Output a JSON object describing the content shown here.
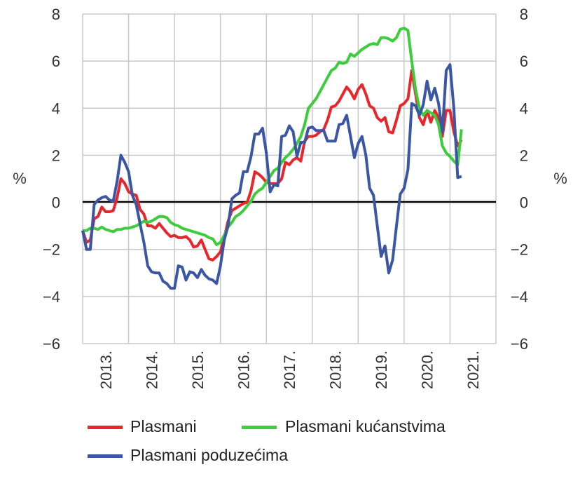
{
  "chart_data": {
    "type": "line",
    "title": "",
    "xlabel": "",
    "ylabel_left": "%",
    "ylabel_right": "%",
    "ylim": [
      -6,
      8
    ],
    "yticks": [
      "8",
      "6",
      "4",
      "2",
      "0",
      "−2",
      "−4",
      "−6"
    ],
    "yticks_values": [
      8,
      6,
      4,
      2,
      0,
      -2,
      -4,
      -6
    ],
    "xtick_labels": [
      "2013.",
      "2014.",
      "2015.",
      "2016.",
      "2017.",
      "2018.",
      "2019.",
      "2020.",
      "2021."
    ],
    "x_start": "2013-01",
    "x_frequency": "monthly",
    "grid": true,
    "legend_position": "bottom",
    "series": [
      {
        "name": "Plasmani",
        "color": "#e8262b",
        "values": [
          -1.2,
          -1.7,
          -1.6,
          -0.7,
          -0.6,
          -0.2,
          -0.4,
          -0.4,
          -0.35,
          0.2,
          1.0,
          0.8,
          0.45,
          0.35,
          0.3,
          -0.3,
          -0.5,
          -1.0,
          -1.0,
          -1.1,
          -0.9,
          -1.1,
          -1.3,
          -1.45,
          -1.4,
          -1.5,
          -1.5,
          -1.45,
          -1.6,
          -1.9,
          -1.85,
          -1.6,
          -2.0,
          -2.4,
          -2.45,
          -2.3,
          -2.1,
          -1.5,
          -0.8,
          -0.35,
          -0.25,
          -0.15,
          -0.05,
          0.0,
          0.5,
          1.3,
          1.2,
          1.05,
          0.85,
          0.8,
          0.8,
          0.8,
          1.0,
          1.7,
          1.6,
          1.8,
          1.9,
          1.75,
          2.6,
          2.8,
          2.8,
          2.85,
          3.0,
          3.1,
          3.5,
          4.05,
          4.1,
          4.3,
          4.6,
          4.9,
          4.7,
          4.4,
          4.8,
          5.0,
          4.6,
          4.1,
          4.0,
          3.6,
          3.45,
          3.6,
          3.0,
          2.95,
          3.5,
          4.1,
          4.2,
          4.4,
          5.6,
          4.6,
          3.6,
          3.3,
          3.9,
          3.4,
          3.9,
          3.6,
          2.8,
          3.9,
          3.9,
          3.0,
          2.4,
          2.65
        ]
      },
      {
        "name": "Plasmani kućanstvima",
        "color": "#3ccc3c",
        "values": [
          -1.2,
          -1.2,
          -1.1,
          -1.1,
          -1.15,
          -1.05,
          -1.15,
          -1.2,
          -1.25,
          -1.15,
          -1.15,
          -1.1,
          -1.1,
          -1.05,
          -1.0,
          -0.9,
          -0.8,
          -0.85,
          -0.8,
          -0.7,
          -0.6,
          -0.6,
          -0.65,
          -0.85,
          -0.95,
          -1.0,
          -1.1,
          -1.15,
          -1.2,
          -1.25,
          -1.3,
          -1.35,
          -1.4,
          -1.5,
          -1.55,
          -1.8,
          -1.7,
          -1.4,
          -1.05,
          -0.85,
          -0.6,
          -0.5,
          -0.35,
          -0.15,
          0.05,
          0.35,
          0.5,
          0.6,
          0.85,
          1.1,
          1.35,
          1.45,
          1.7,
          1.9,
          2.05,
          2.25,
          2.5,
          2.8,
          3.3,
          4.0,
          4.2,
          4.4,
          4.7,
          5.0,
          5.3,
          5.6,
          5.7,
          5.95,
          5.9,
          5.95,
          6.3,
          6.2,
          6.35,
          6.5,
          6.6,
          6.7,
          6.75,
          6.7,
          7.0,
          7.0,
          6.95,
          6.85,
          7.0,
          7.35,
          7.4,
          7.3,
          6.0,
          4.8,
          4.0,
          3.7,
          3.9,
          3.8,
          3.7,
          3.3,
          2.4,
          2.1,
          1.95,
          1.75,
          1.6,
          3.1
        ]
      },
      {
        "name": "Plasmani poduzećima",
        "color": "#3a56a5",
        "values": [
          -1.2,
          -2.0,
          -2.0,
          -0.1,
          0.1,
          0.2,
          0.25,
          0.1,
          0.05,
          0.9,
          2.0,
          1.7,
          1.3,
          0.3,
          -0.1,
          -0.9,
          -1.7,
          -2.7,
          -2.95,
          -3.0,
          -3.0,
          -3.35,
          -3.45,
          -3.65,
          -3.65,
          -2.7,
          -2.75,
          -3.3,
          -2.95,
          -3.0,
          -3.2,
          -2.85,
          -3.1,
          -3.25,
          -3.3,
          -3.45,
          -2.7,
          -1.6,
          -1.0,
          0.15,
          0.3,
          0.4,
          1.3,
          1.3,
          1.95,
          2.9,
          2.9,
          3.15,
          2.1,
          0.45,
          0.75,
          0.7,
          2.8,
          2.85,
          3.25,
          3.0,
          1.95,
          2.55,
          2.55,
          3.15,
          3.2,
          3.05,
          3.05,
          3.05,
          2.6,
          2.6,
          2.6,
          3.3,
          3.35,
          3.7,
          2.8,
          1.9,
          2.5,
          2.8,
          2.0,
          0.6,
          0.3,
          -1.0,
          -2.3,
          -1.85,
          -3.0,
          -2.45,
          -1.0,
          0.35,
          0.6,
          1.4,
          4.2,
          4.1,
          3.7,
          4.15,
          5.15,
          4.35,
          4.85,
          4.2,
          3.0,
          5.6,
          5.85,
          4.0,
          1.05,
          1.1
        ]
      }
    ]
  }
}
